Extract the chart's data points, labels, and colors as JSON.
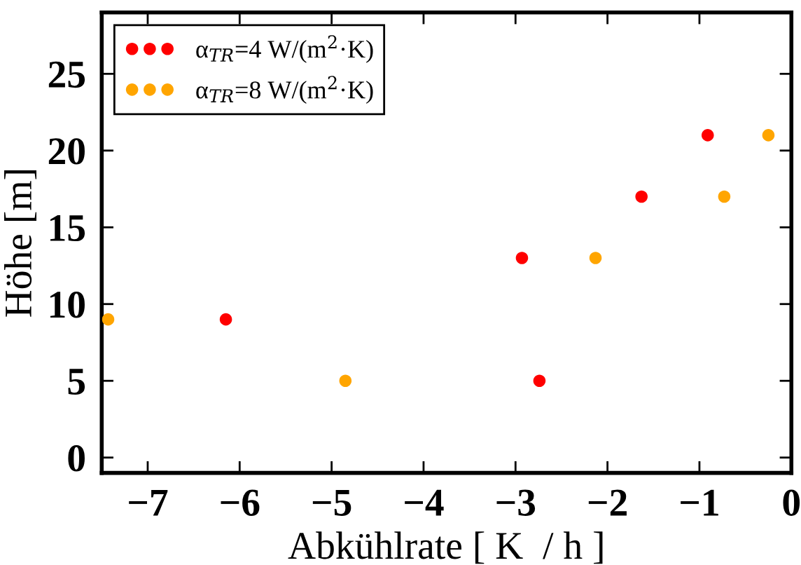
{
  "chart_data": {
    "type": "scatter",
    "xlabel": "Abkühlrate [ K  / h ]",
    "ylabel": "Höhe [m]",
    "xlim": [
      -7.5,
      0
    ],
    "xticks": [
      -7,
      -6,
      -5,
      -4,
      -3,
      -2,
      -1,
      0
    ],
    "ylim": [
      -1,
      29
    ],
    "yticks": [
      0,
      5,
      10,
      15,
      20,
      25
    ],
    "grid": false,
    "legend": "top left",
    "marker": "circle",
    "series": [
      {
        "name": "α$_{TR}$=4 W/(m$^{2}$·K)",
        "color": "#ff0000",
        "x": [
          -6.15,
          -2.93,
          -2.74,
          -1.63,
          -0.91
        ],
        "values": [
          9,
          13,
          5,
          17,
          21
        ]
      },
      {
        "name": "α$_{TR}$=8 W/(m$^{2}$·K)",
        "color": "#ffa500",
        "x": [
          -7.43,
          -4.85,
          -2.13,
          -0.73,
          -0.25
        ],
        "values": [
          9,
          5,
          13,
          17,
          21
        ]
      }
    ]
  }
}
